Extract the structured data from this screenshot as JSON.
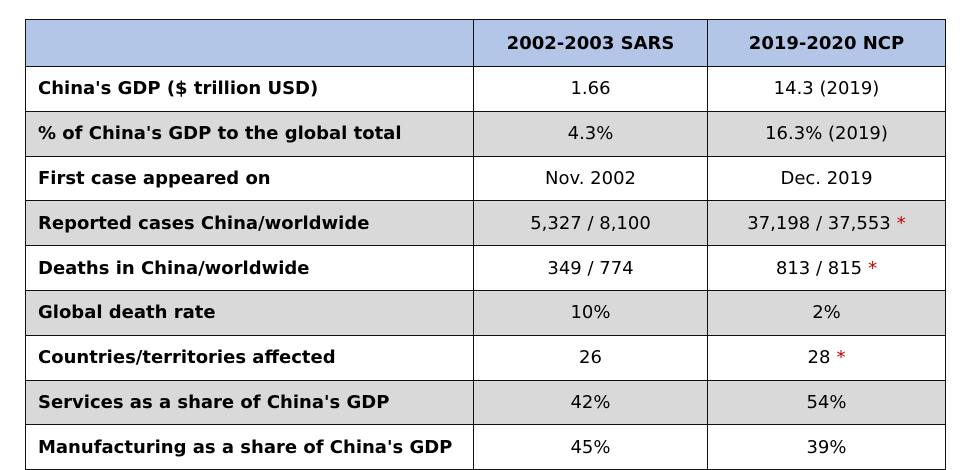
{
  "table": {
    "headers": {
      "corner": "",
      "sars": "2002-2003 SARS",
      "ncp": "2019-2020 NCP"
    },
    "rows": [
      {
        "label": "China's GDP ($ trillion USD)",
        "sars": "1.66",
        "ncp": "14.3 (2019)",
        "ncp_note": "",
        "shaded": false
      },
      {
        "label": "% of China's GDP to the global total",
        "sars": "4.3%",
        "ncp": "16.3% (2019)",
        "ncp_note": "",
        "shaded": true
      },
      {
        "label": "First case appeared on",
        "sars": "Nov. 2002",
        "ncp": "Dec. 2019",
        "ncp_note": "",
        "shaded": false
      },
      {
        "label": "Reported cases China/worldwide",
        "sars": "5,327 / 8,100",
        "ncp": "37,198 / 37,553",
        "ncp_note": "*",
        "shaded": true
      },
      {
        "label": "Deaths in China/worldwide",
        "sars": "349 / 774",
        "ncp": "813 / 815",
        "ncp_note": "*",
        "shaded": false
      },
      {
        "label": "Global death rate",
        "sars": "10%",
        "ncp": "2%",
        "ncp_note": "",
        "shaded": true
      },
      {
        "label": "Countries/territories affected",
        "sars": "26",
        "ncp": "28",
        "ncp_note": "*",
        "shaded": false
      },
      {
        "label": "Services as a share of China's GDP",
        "sars": "42%",
        "ncp": "54%",
        "ncp_note": "",
        "shaded": true
      },
      {
        "label": "Manufacturing as a share of China's GDP",
        "sars": "45%",
        "ncp": "39%",
        "ncp_note": "",
        "shaded": false
      }
    ]
  },
  "colors": {
    "header_bg": "#b4c6e7",
    "shaded_row_bg": "#d9d9d9",
    "plain_row_bg": "#ffffff",
    "asterisk": "#c00000",
    "border": "#111111"
  }
}
